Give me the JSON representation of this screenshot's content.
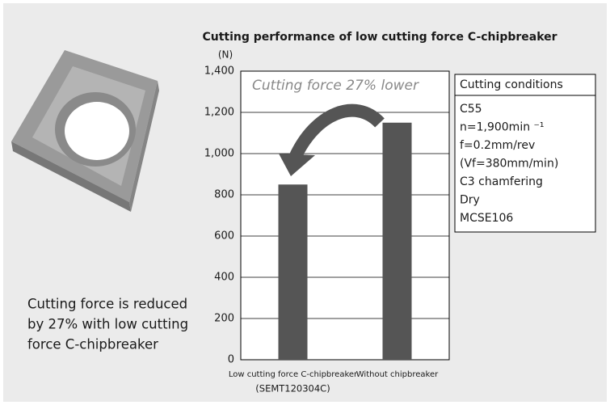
{
  "chart_data": {
    "type": "bar",
    "title": "Cutting performance of low cutting force C-chipbreaker",
    "y_unit": "(N)",
    "categories": [
      "Low cutting force C-chipbreaker",
      "Without chipbreaker"
    ],
    "category_notes": [
      "(SEMT120304C)",
      null
    ],
    "values": [
      850,
      1150
    ],
    "color": "#555555",
    "ylim": [
      0,
      1400
    ],
    "yticks": [
      0,
      200,
      400,
      600,
      {
        "value": 800,
        "label": "800"
      },
      {
        "value": 1000,
        "label": "1,000"
      },
      {
        "value": 1200,
        "label": "1,200"
      },
      {
        "value": 1400,
        "label": "1,400"
      }
    ],
    "grid": true,
    "annotation": "Cutting force 27% lower",
    "conditions": {
      "title": "Cutting conditions",
      "items": [
        "C55",
        "n=1,900min ⁻¹",
        "f=0.2mm/rev",
        "(Vf=380mm/min)",
        "C3 chamfering",
        "Dry",
        "MCSE106"
      ]
    },
    "caption": [
      "Cutting force is reduced",
      "by 27% with low cutting",
      "force C-chipbreaker"
    ]
  }
}
